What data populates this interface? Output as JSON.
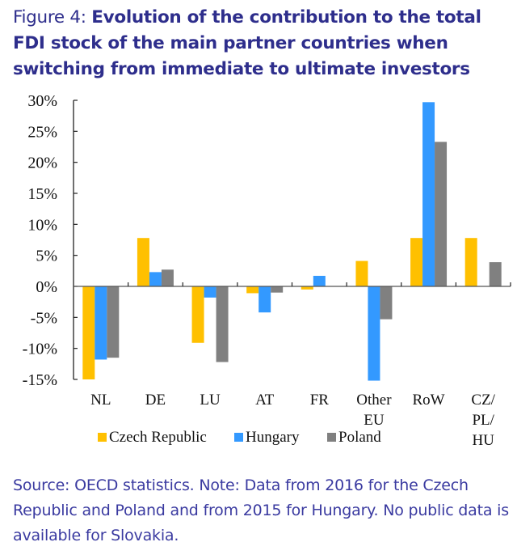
{
  "title": {
    "lead": "Figure 4: ",
    "main": "Evolution of the contribution to the total FDI stock of the main partner countries when switching from immediate to ultimate investors"
  },
  "source": "Source: OECD statistics. Note: Data from 2016 for the Czech Republic and Poland and from 2015 for Hungary. No public data is available for Slovakia.",
  "chart_data": {
    "type": "bar",
    "title": "Evolution of the contribution to the total FDI stock of the main partner countries when switching from immediate to ultimate investors",
    "xlabel": "",
    "ylabel": "",
    "ylim": [
      -15,
      30
    ],
    "yticks": [
      30,
      25,
      20,
      15,
      10,
      5,
      0,
      -5,
      -10,
      -15
    ],
    "ytick_labels": [
      "30%",
      "25%",
      "20%",
      "15%",
      "10%",
      "5%",
      "0%",
      "-5%",
      "-10%",
      "-15%"
    ],
    "categories": [
      "NL",
      "DE",
      "LU",
      "AT",
      "FR",
      "Other EU",
      "RoW",
      "CZ/PL/HU"
    ],
    "category_label_lines": [
      [
        "NL"
      ],
      [
        "DE"
      ],
      [
        "LU"
      ],
      [
        "AT"
      ],
      [
        "FR"
      ],
      [
        "Other",
        "EU"
      ],
      [
        "RoW"
      ],
      [
        "CZ/",
        "PL/",
        "HU"
      ]
    ],
    "series": [
      {
        "name": "Czech Republic",
        "color": "#ffc000",
        "values": [
          -15.0,
          7.8,
          -9.1,
          -1.1,
          -0.5,
          4.1,
          7.8,
          7.8
        ]
      },
      {
        "name": "Hungary",
        "color": "#3399ff",
        "values": [
          -11.8,
          2.3,
          -1.8,
          -4.2,
          1.7,
          -15.2,
          29.7,
          0
        ]
      },
      {
        "name": "Poland",
        "color": "#808080",
        "values": [
          -11.5,
          2.7,
          -12.2,
          -1.0,
          0,
          -5.3,
          23.3,
          3.9
        ]
      }
    ],
    "grid": false,
    "legend_position": "bottom"
  }
}
